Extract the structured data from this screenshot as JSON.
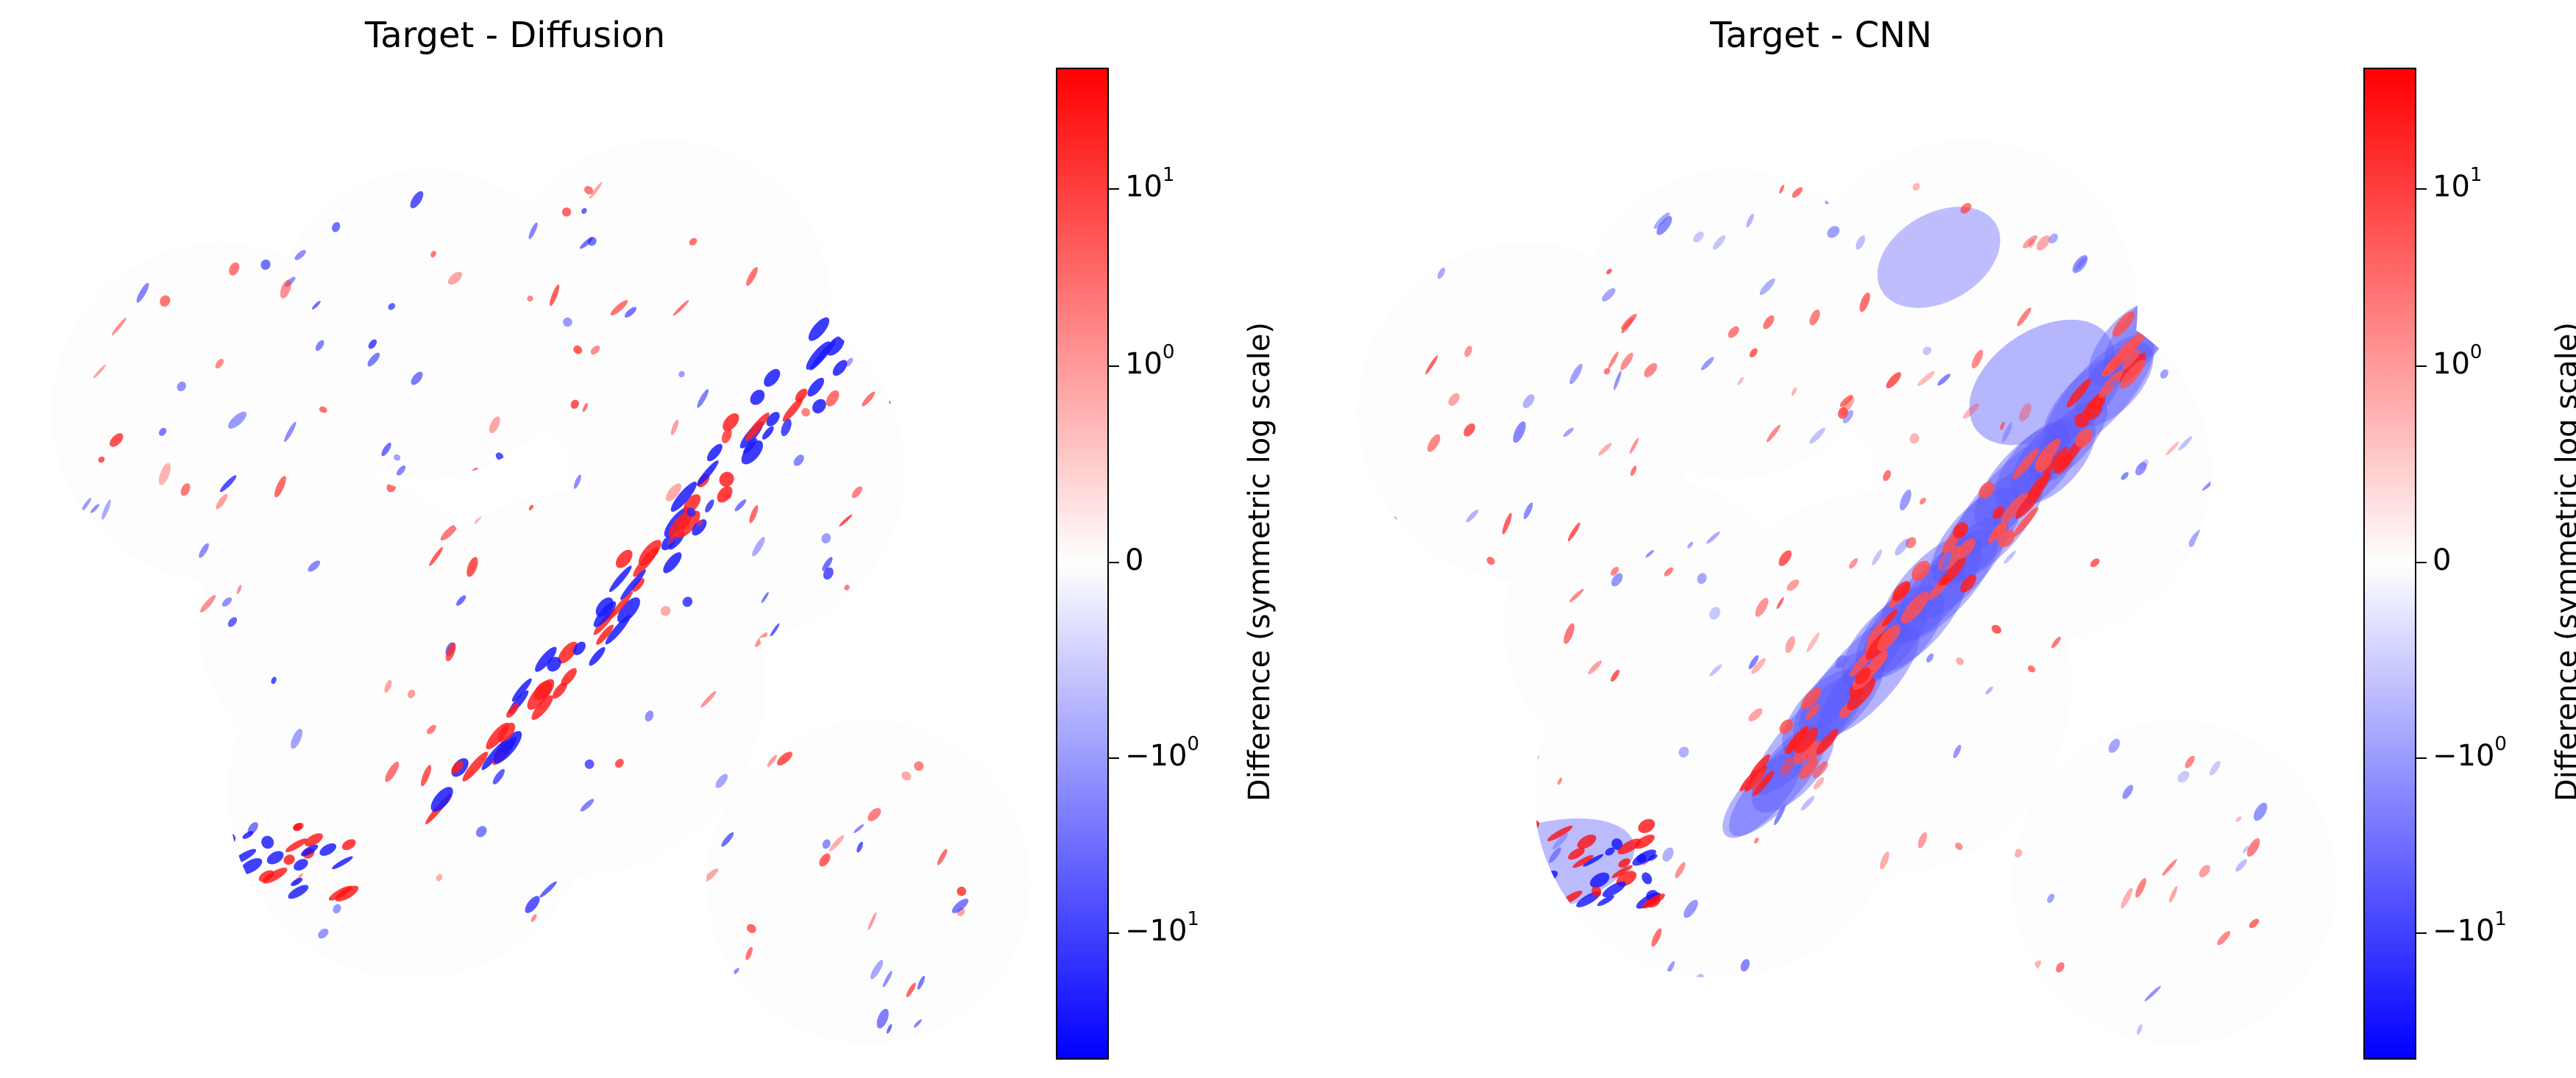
{
  "chart_data": [
    {
      "type": "heatmap",
      "title": "Target - Diffusion",
      "colorbar": {
        "label": "Difference (symmetric log scale)",
        "scale": "symlog",
        "colormap": [
          "#0000ff",
          "#ffffff",
          "#ff0000"
        ],
        "tick_labels": [
          {
            "base": "10",
            "exp": "1"
          },
          {
            "base": "10",
            "exp": "0"
          },
          {
            "base": "0",
            "exp": ""
          },
          {
            "base": "−10",
            "exp": "0"
          },
          {
            "base": "−10",
            "exp": "1"
          }
        ]
      }
    },
    {
      "type": "heatmap",
      "title": "Target - CNN",
      "colorbar": {
        "label": "Difference (symmetric log scale)",
        "scale": "symlog",
        "colormap": [
          "#0000ff",
          "#ffffff",
          "#ff0000"
        ],
        "tick_labels": [
          {
            "base": "10",
            "exp": "1"
          },
          {
            "base": "10",
            "exp": "0"
          },
          {
            "base": "0",
            "exp": ""
          },
          {
            "base": "−10",
            "exp": "0"
          },
          {
            "base": "−10",
            "exp": "1"
          }
        ]
      }
    }
  ]
}
